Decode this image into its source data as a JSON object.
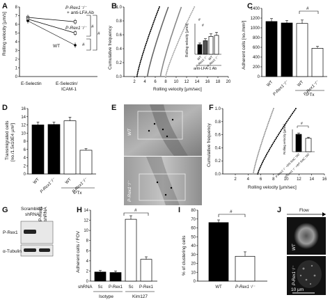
{
  "panels": {
    "A": {
      "label": "A",
      "ylabel": "Rolling velocity [µm/s]",
      "yticks": [
        "8",
        "7",
        "6",
        "5",
        "4",
        "3",
        "2",
        "1",
        "0"
      ],
      "x_labels": [
        "E-Selectin",
        "E-Selectin/\nICAM-1"
      ],
      "series": {
        "prex_lfa": "P-Rex1⁻/⁻\n+ anti-LFA Ab",
        "prex": "P-Rex1⁻/⁻",
        "wt": "WT"
      },
      "sig": "#"
    },
    "B": {
      "label": "B",
      "ylabel": "Cumulative frequency",
      "yticks": [
        "1.0",
        "0.8",
        "0.6",
        "0.4",
        "0.2",
        "0.0"
      ],
      "xticks": [
        "2",
        "4",
        "6",
        "8",
        "10",
        "12",
        "14",
        "16",
        "18",
        "20"
      ],
      "xlabel": "Rolling velocity [µm/sec]",
      "inset": {
        "ylabel": "Rolling velocity [µm/s]",
        "yticks": [
          "12",
          "10",
          "8",
          "6",
          "4",
          "2",
          "0"
        ],
        "xlabels": [
          "WT",
          "P-Rex1⁻/⁻",
          "WT",
          "P-Rex1⁻/⁻"
        ],
        "group": "anti-LFA-1 Ab",
        "sig": "#"
      }
    },
    "C": {
      "label": "C",
      "ylabel": "Adherent cells [no./mm²]",
      "yticks": [
        "1400",
        "1200",
        "1000",
        "800",
        "600",
        "400",
        "200",
        "0"
      ],
      "xlabels": [
        "WT",
        "P-Rex1⁻/⁻",
        "WT",
        "P-Rex1⁻/⁻"
      ],
      "group": "PTx",
      "sig": "#"
    },
    "D": {
      "label": "D",
      "ylabel": "Transmigrated cells\n[no./1.5x10E4 µm²]",
      "yticks": [
        "16",
        "14",
        "12",
        "10",
        "8",
        "6",
        "4",
        "2",
        "0"
      ],
      "xlabels": [
        "WT",
        "P-Rex1⁻/⁻",
        "WT",
        "P-Rex1⁻/⁻"
      ],
      "group": "PTx"
    },
    "E": {
      "label": "E",
      "top": "WT",
      "bottom": "P-Rex1⁻/⁻"
    },
    "F": {
      "label": "F",
      "ylabel": "Cumulative frequency",
      "yticks": [
        "1.0",
        "0.8",
        "0.6",
        "0.4",
        "0.2",
        "0.0"
      ],
      "xticks": [
        "2",
        "4",
        "6",
        "8",
        "10",
        "12",
        "14",
        "16"
      ],
      "xlabel": "Rolling velocity [µm/sec]",
      "inset": {
        "ylabel": "Rolling velocity [µm/s]",
        "yticks": [
          "10",
          "8",
          "6",
          "4",
          "2",
          "0"
        ],
        "xlabels": [
          "P-Rex1⁻/⁻\n+DN RAC TAT",
          "P-Rex1⁻/⁻\n+WT RAC TAT"
        ],
        "sig": "#"
      }
    },
    "G": {
      "label": "G",
      "cols": [
        "Scrambled\nshRNA",
        "P-Rex1\nshRNA"
      ],
      "rows": [
        "P-Rex1",
        "α-Tubulin"
      ]
    },
    "H": {
      "label": "H",
      "ylabel": "Adherent cells / FOV",
      "yticks": [
        "14",
        "12",
        "10",
        "8",
        "6",
        "4",
        "2",
        "0"
      ],
      "row_label": "shRNA",
      "xlabels": [
        "Sc",
        "P-Rex1",
        "Sc",
        "P-Rex1"
      ],
      "groups": [
        "Isotype",
        "Kim127"
      ],
      "sig": "#"
    },
    "I": {
      "label": "I",
      "ylabel": "% of clustering cells",
      "yticks": [
        "80",
        "70",
        "60",
        "50",
        "40",
        "30",
        "20",
        "10",
        "0"
      ],
      "xlabels": [
        "WT",
        "P-Rex1⁻/⁻"
      ],
      "sig": "#"
    },
    "J": {
      "label": "J",
      "flow": "Flow",
      "top": "WT",
      "bottom": "P-Rex1⁻/⁻",
      "scale": "10 µm"
    }
  },
  "chart_data": [
    {
      "panel": "A",
      "type": "line",
      "x": [
        "E-Selectin",
        "E-Selectin/ICAM-1"
      ],
      "ylim": [
        0,
        8
      ],
      "series": [
        {
          "name": "P-Rex1-/- + anti-LFA Ab",
          "values": [
            6.8,
            6.3
          ]
        },
        {
          "name": "P-Rex1-/-",
          "values": [
            6.6,
            5.0
          ]
        },
        {
          "name": "WT",
          "values": [
            6.4,
            3.6
          ]
        }
      ]
    },
    {
      "panel": "B",
      "type": "line",
      "xlim": [
        0,
        20
      ],
      "ylim": [
        0,
        1
      ],
      "note": "cumulative frequency curves, 4 groups",
      "inset": {
        "type": "bar",
        "ylim": [
          0,
          12
        ],
        "categories": [
          "WT",
          "P-Rex1-/-",
          "WT anti-LFA-1 Ab",
          "P-Rex1-/- anti-LFA-1 Ab"
        ],
        "values": [
          3.8,
          5.3,
          7.0,
          7.4
        ]
      }
    },
    {
      "panel": "C",
      "type": "bar",
      "ylim": [
        0,
        1400
      ],
      "categories": [
        "WT",
        "P-Rex1-/-",
        "WT PTx",
        "P-Rex1-/- PTx"
      ],
      "values": [
        1130,
        1100,
        1090,
        580
      ]
    },
    {
      "panel": "D",
      "type": "bar",
      "ylim": [
        0,
        16
      ],
      "categories": [
        "WT",
        "P-Rex1-/-",
        "WT PTx",
        "P-Rex1-/- PTx"
      ],
      "values": [
        12.0,
        12.1,
        13.0,
        5.8
      ]
    },
    {
      "panel": "F",
      "type": "line",
      "xlim": [
        0,
        16
      ],
      "ylim": [
        0,
        1
      ],
      "inset": {
        "type": "bar",
        "ylim": [
          0,
          10
        ],
        "categories": [
          "P-Rex1-/- +DN RAC TAT",
          "P-Rex1-/- +WT RAC TAT"
        ],
        "values": [
          7.8,
          6.0
        ]
      }
    },
    {
      "panel": "H",
      "type": "bar",
      "ylim": [
        0,
        14
      ],
      "categories": [
        "Sc Isotype",
        "P-Rex1 Isotype",
        "Sc Kim127",
        "P-Rex1 Kim127"
      ],
      "values": [
        1.8,
        1.7,
        12.2,
        4.3
      ]
    },
    {
      "panel": "I",
      "type": "bar",
      "ylim": [
        0,
        80
      ],
      "categories": [
        "WT",
        "P-Rex1-/-"
      ],
      "values": [
        66,
        28
      ]
    }
  ]
}
